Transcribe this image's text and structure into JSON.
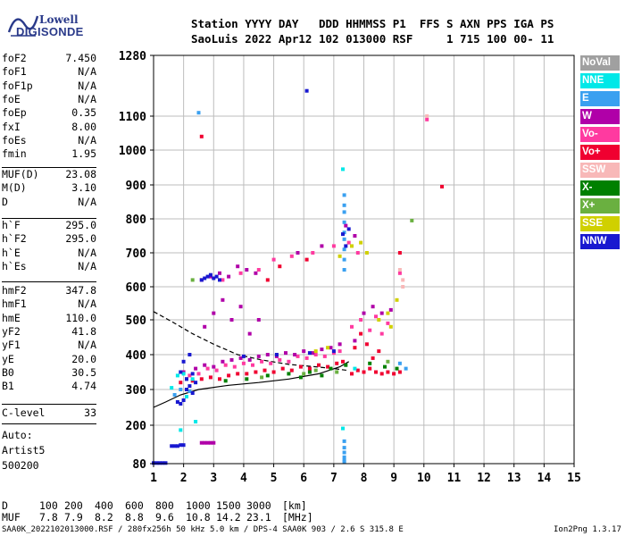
{
  "brand": {
    "line1": "Lowell",
    "line2": "DIGISONDE"
  },
  "header": {
    "line1": "Station YYYY DAY   DDD HHMMSS P1  FFS S AXN PPS IGA PS",
    "line2": "SaoLuis 2022 Apr12 102 013000 RSF     1 715 100 00- 11"
  },
  "params": [
    {
      "k": "foF2",
      "v": "7.450"
    },
    {
      "k": "foF1",
      "v": "N/A"
    },
    {
      "k": "foF1p",
      "v": "N/A"
    },
    {
      "k": "foE",
      "v": "N/A"
    },
    {
      "k": "foEp",
      "v": "0.35"
    },
    {
      "k": "fxI",
      "v": "8.00"
    },
    {
      "k": "foEs",
      "v": "N/A"
    },
    {
      "k": "fmin",
      "v": "1.95"
    },
    {
      "k": "MUF(D)",
      "v": "23.08"
    },
    {
      "k": "M(D)",
      "v": "3.10"
    },
    {
      "k": "D",
      "v": "N/A"
    },
    {
      "k": "h`F",
      "v": "295.0"
    },
    {
      "k": "h`F2",
      "v": "295.0"
    },
    {
      "k": "h`E",
      "v": "N/A"
    },
    {
      "k": "h`Es",
      "v": "N/A"
    },
    {
      "k": "hmF2",
      "v": "347.8"
    },
    {
      "k": "hmF1",
      "v": "N/A"
    },
    {
      "k": "hmE",
      "v": "110.0"
    },
    {
      "k": "yF2",
      "v": "41.8"
    },
    {
      "k": "yF1",
      "v": "N/A"
    },
    {
      "k": "yE",
      "v": "20.0"
    },
    {
      "k": "B0",
      "v": "30.5"
    },
    {
      "k": "B1",
      "v": "4.74"
    },
    {
      "k": "C-level",
      "v": "33"
    }
  ],
  "autoscale": {
    "label": "Auto:",
    "artist": "Artist5",
    "code": "500200"
  },
  "legend": [
    {
      "label": "NoVal",
      "color": "#a0a0a0"
    },
    {
      "label": "NNE",
      "color": "#00e8e8"
    },
    {
      "label": "E",
      "color": "#3aa0f0"
    },
    {
      "label": "W",
      "color": "#b000a8"
    },
    {
      "label": "Vo-",
      "color": "#ff3aa0"
    },
    {
      "label": "Vo+",
      "color": "#f00030"
    },
    {
      "label": "SSW",
      "color": "#f8b8b8"
    },
    {
      "label": "X-",
      "color": "#008000"
    },
    {
      "label": "X+",
      "color": "#6ab040"
    },
    {
      "label": "SSE",
      "color": "#d0d000"
    },
    {
      "label": "NNW",
      "color": "#1818d0"
    }
  ],
  "muf_table": {
    "d_label": "D",
    "d_values": [
      "100",
      "200",
      "400",
      "600",
      "800",
      "1000",
      "1500",
      "3000",
      "[km]"
    ],
    "m_label": "MUF",
    "m_values": [
      "7.8",
      "7.9",
      "8.2",
      "8.8",
      "9.6",
      "10.8",
      "14.2",
      "23.1",
      "[MHz]"
    ]
  },
  "footer": {
    "left": "SAA0K_2022102013000.RSF / 280fx256h 50 kHz 5.0 km / DPS-4 SAA0K 903 / 2.6 S 315.8 E",
    "right": "Ion2Png 1.3.17"
  },
  "chart_data": {
    "type": "scatter",
    "title": "",
    "xlabel": "",
    "ylabel": "",
    "xlim": [
      1,
      15
    ],
    "ylim": [
      80,
      1280
    ],
    "x_ticks": [
      1,
      2,
      3,
      4,
      5,
      6,
      7,
      8,
      9,
      10,
      11,
      12,
      13,
      14,
      15
    ],
    "y_ticks": [
      80,
      200,
      300,
      400,
      500,
      600,
      700,
      800,
      900,
      1000,
      1100,
      1280
    ],
    "grid": true,
    "series": [
      {
        "name": "Vo+",
        "color": "#f00030",
        "points": [
          [
            1.9,
            320
          ],
          [
            2.1,
            330
          ],
          [
            2.3,
            325
          ],
          [
            2.6,
            330
          ],
          [
            2.9,
            335
          ],
          [
            3.2,
            330
          ],
          [
            3.5,
            340
          ],
          [
            3.8,
            345
          ],
          [
            4.1,
            345
          ],
          [
            4.4,
            350
          ],
          [
            4.7,
            355
          ],
          [
            5.0,
            350
          ],
          [
            5.3,
            360
          ],
          [
            5.6,
            355
          ],
          [
            5.9,
            365
          ],
          [
            6.2,
            360
          ],
          [
            6.5,
            370
          ],
          [
            6.8,
            365
          ],
          [
            7.1,
            375
          ],
          [
            7.3,
            380
          ],
          [
            7.6,
            345
          ],
          [
            7.8,
            355
          ],
          [
            8.0,
            350
          ],
          [
            8.2,
            360
          ],
          [
            8.4,
            350
          ],
          [
            8.6,
            345
          ],
          [
            8.8,
            350
          ],
          [
            9.0,
            345
          ],
          [
            9.2,
            350
          ],
          [
            7.7,
            420
          ],
          [
            7.9,
            460
          ],
          [
            8.1,
            430
          ],
          [
            8.3,
            390
          ],
          [
            8.5,
            410
          ],
          [
            4.8,
            620
          ],
          [
            5.2,
            660
          ],
          [
            6.1,
            680
          ],
          [
            10.6,
            895
          ],
          [
            2.6,
            1040
          ],
          [
            9.2,
            700
          ]
        ]
      },
      {
        "name": "Vo-",
        "color": "#ff3aa0",
        "points": [
          [
            2.2,
            340
          ],
          [
            2.5,
            345
          ],
          [
            2.8,
            360
          ],
          [
            3.1,
            355
          ],
          [
            3.4,
            370
          ],
          [
            3.7,
            365
          ],
          [
            4.0,
            375
          ],
          [
            4.3,
            370
          ],
          [
            4.6,
            380
          ],
          [
            4.9,
            375
          ],
          [
            5.2,
            385
          ],
          [
            5.5,
            380
          ],
          [
            5.8,
            395
          ],
          [
            6.1,
            390
          ],
          [
            6.4,
            400
          ],
          [
            6.7,
            395
          ],
          [
            7.0,
            405
          ],
          [
            7.2,
            410
          ],
          [
            7.6,
            480
          ],
          [
            7.9,
            500
          ],
          [
            8.2,
            470
          ],
          [
            8.4,
            510
          ],
          [
            8.6,
            460
          ],
          [
            8.8,
            490
          ],
          [
            3.3,
            620
          ],
          [
            3.9,
            640
          ],
          [
            4.5,
            650
          ],
          [
            5.0,
            680
          ],
          [
            5.6,
            690
          ],
          [
            6.3,
            700
          ],
          [
            7.0,
            720
          ],
          [
            7.5,
            730
          ],
          [
            7.8,
            700
          ],
          [
            9.2,
            640
          ],
          [
            10.1,
            1090
          ]
        ]
      },
      {
        "name": "W",
        "color": "#b000a8",
        "points": [
          [
            2.0,
            350
          ],
          [
            2.4,
            360
          ],
          [
            2.7,
            370
          ],
          [
            3.0,
            365
          ],
          [
            3.3,
            380
          ],
          [
            3.6,
            385
          ],
          [
            3.9,
            390
          ],
          [
            4.2,
            385
          ],
          [
            4.5,
            395
          ],
          [
            4.8,
            400
          ],
          [
            5.1,
            395
          ],
          [
            5.4,
            405
          ],
          [
            5.7,
            400
          ],
          [
            6.0,
            410
          ],
          [
            6.3,
            405
          ],
          [
            6.6,
            415
          ],
          [
            6.9,
            420
          ],
          [
            7.2,
            430
          ],
          [
            7.7,
            440
          ],
          [
            8.0,
            520
          ],
          [
            8.3,
            540
          ],
          [
            8.6,
            520
          ],
          [
            8.9,
            530
          ],
          [
            2.6,
            620
          ],
          [
            2.9,
            630
          ],
          [
            3.2,
            640
          ],
          [
            3.5,
            630
          ],
          [
            3.8,
            660
          ],
          [
            4.1,
            650
          ],
          [
            4.4,
            640
          ],
          [
            5.8,
            700
          ],
          [
            6.6,
            720
          ],
          [
            7.4,
            780
          ],
          [
            7.7,
            750
          ],
          [
            2.7,
            480
          ],
          [
            3.0,
            520
          ],
          [
            3.3,
            560
          ],
          [
            3.6,
            500
          ],
          [
            3.9,
            540
          ],
          [
            4.2,
            460
          ],
          [
            4.5,
            500
          ],
          [
            2.6,
            145
          ],
          [
            2.7,
            145
          ],
          [
            2.8,
            145
          ],
          [
            2.9,
            145
          ],
          [
            3.0,
            145
          ]
        ]
      },
      {
        "name": "X-",
        "color": "#008000",
        "points": [
          [
            3.4,
            325
          ],
          [
            4.1,
            330
          ],
          [
            4.8,
            340
          ],
          [
            5.5,
            345
          ],
          [
            6.2,
            350
          ],
          [
            6.9,
            360
          ],
          [
            7.4,
            370
          ],
          [
            8.2,
            375
          ],
          [
            8.7,
            365
          ],
          [
            9.1,
            360
          ],
          [
            5.9,
            335
          ],
          [
            6.6,
            340
          ]
        ]
      },
      {
        "name": "X+",
        "color": "#6ab040",
        "points": [
          [
            2.3,
            620
          ],
          [
            4.6,
            335
          ],
          [
            6.0,
            345
          ],
          [
            7.1,
            350
          ],
          [
            8.8,
            380
          ],
          [
            9.6,
            795
          ],
          [
            6.4,
            355
          ]
        ]
      },
      {
        "name": "SSE",
        "color": "#d0d000",
        "points": [
          [
            7.2,
            690
          ],
          [
            7.6,
            720
          ],
          [
            7.9,
            730
          ],
          [
            8.1,
            700
          ],
          [
            8.5,
            500
          ],
          [
            8.8,
            520
          ],
          [
            8.9,
            480
          ],
          [
            9.1,
            560
          ],
          [
            6.4,
            410
          ],
          [
            6.8,
            420
          ]
        ]
      },
      {
        "name": "NNE",
        "color": "#00e8e8",
        "points": [
          [
            1.6,
            305
          ],
          [
            1.8,
            340
          ],
          [
            2.0,
            345
          ],
          [
            1.9,
            185
          ],
          [
            2.3,
            330
          ],
          [
            7.7,
            360
          ],
          [
            7.3,
            945
          ],
          [
            7.3,
            190
          ],
          [
            2.4,
            210
          ],
          [
            2.1,
            280
          ]
        ]
      },
      {
        "name": "E",
        "color": "#3aa0f0",
        "points": [
          [
            1.7,
            285
          ],
          [
            1.9,
            300
          ],
          [
            2.1,
            330
          ],
          [
            2.2,
            295
          ],
          [
            2.5,
            1110
          ],
          [
            9.4,
            360
          ],
          [
            9.2,
            375
          ],
          [
            7.35,
            870
          ],
          [
            7.35,
            840
          ],
          [
            7.35,
            820
          ],
          [
            7.35,
            790
          ],
          [
            7.35,
            760
          ],
          [
            7.35,
            740
          ],
          [
            7.35,
            710
          ],
          [
            7.35,
            680
          ],
          [
            7.35,
            650
          ],
          [
            7.35,
            150
          ],
          [
            7.35,
            130
          ],
          [
            7.35,
            115
          ],
          [
            7.35,
            100
          ],
          [
            7.35,
            90
          ],
          [
            7.35,
            85
          ]
        ]
      },
      {
        "name": "SSW",
        "color": "#f8b8b8",
        "points": [
          [
            9.3,
            600
          ],
          [
            9.3,
            620
          ],
          [
            9.2,
            650
          ],
          [
            10.1,
            1100
          ]
        ]
      },
      {
        "name": "NNW",
        "color": "#1818d0",
        "points": [
          [
            1.0,
            82
          ],
          [
            1.1,
            82
          ],
          [
            1.2,
            82
          ],
          [
            1.3,
            82
          ],
          [
            1.4,
            82
          ],
          [
            1.6,
            135
          ],
          [
            1.7,
            135
          ],
          [
            1.8,
            135
          ],
          [
            1.9,
            138
          ],
          [
            2.0,
            138
          ],
          [
            1.9,
            260
          ],
          [
            2.0,
            270
          ],
          [
            1.8,
            265
          ],
          [
            2.1,
            300
          ],
          [
            2.2,
            310
          ],
          [
            2.3,
            290
          ],
          [
            2.1,
            330
          ],
          [
            2.4,
            320
          ],
          [
            2.6,
            620
          ],
          [
            2.7,
            625
          ],
          [
            2.8,
            630
          ],
          [
            2.9,
            635
          ],
          [
            3.0,
            625
          ],
          [
            3.1,
            630
          ],
          [
            3.2,
            620
          ],
          [
            2.0,
            380
          ],
          [
            2.2,
            400
          ],
          [
            1.9,
            350
          ],
          [
            2.3,
            345
          ],
          [
            4.0,
            395
          ],
          [
            5.1,
            400
          ],
          [
            6.2,
            405
          ],
          [
            7.0,
            410
          ],
          [
            7.5,
            770
          ],
          [
            7.3,
            755
          ],
          [
            7.4,
            720
          ],
          [
            6.1,
            1175
          ]
        ]
      }
    ],
    "curves": [
      {
        "name": "solid-trace",
        "style": "solid",
        "points": [
          [
            1.0,
            250
          ],
          [
            1.4,
            265
          ],
          [
            1.9,
            285
          ],
          [
            2.5,
            300
          ],
          [
            3.5,
            312
          ],
          [
            4.5,
            320
          ],
          [
            5.5,
            330
          ],
          [
            6.5,
            345
          ],
          [
            7.2,
            365
          ],
          [
            7.5,
            380
          ]
        ]
      },
      {
        "name": "dashed-trace",
        "style": "dashed",
        "points": [
          [
            1.0,
            525
          ],
          [
            1.6,
            495
          ],
          [
            2.3,
            460
          ],
          [
            3.0,
            430
          ],
          [
            3.8,
            400
          ],
          [
            4.6,
            385
          ],
          [
            5.5,
            372
          ],
          [
            6.4,
            365
          ],
          [
            7.0,
            360
          ],
          [
            7.45,
            355
          ]
        ]
      }
    ]
  }
}
